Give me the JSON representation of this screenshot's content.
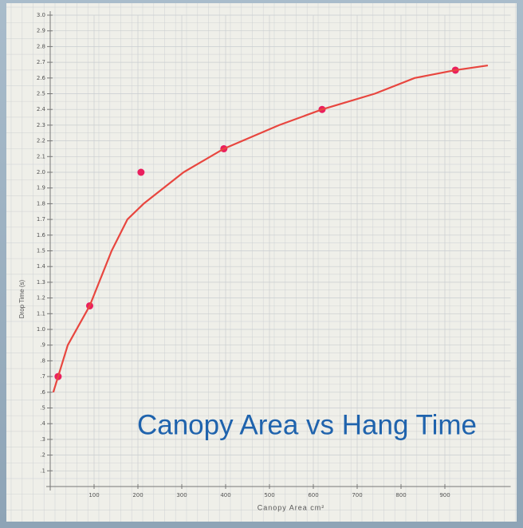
{
  "chart_data": {
    "type": "scatter",
    "title": "Canopy Area vs Hang Time",
    "x_label": "Canopy Area cm²",
    "y_label": "Drop Time (s)",
    "series": [
      {
        "type": "scatter",
        "color": "#ea1f5e",
        "x": [
          18,
          90,
          207,
          396,
          620,
          924
        ],
        "values": [
          0.7,
          1.15,
          2.0,
          2.15,
          2.4,
          2.65
        ]
      },
      {
        "type": "line",
        "color": "#e8463f",
        "x": [
          7,
          40,
          90,
          140,
          176,
          213,
          304,
          396,
          522,
          620,
          740,
          831,
          924,
          998
        ],
        "values": [
          0.6,
          0.9,
          1.15,
          1.5,
          1.7,
          1.8,
          2.0,
          2.15,
          2.3,
          2.4,
          2.5,
          2.6,
          2.65,
          2.68
        ]
      }
    ],
    "xlim": [
      0,
      1050
    ],
    "ylim": [
      0,
      3
    ],
    "xticks": [
      100,
      200,
      300,
      400,
      500,
      600,
      700,
      800,
      900
    ],
    "yticks": [
      {
        "value": 0.1,
        "label": ".1"
      },
      {
        "value": 0.2,
        "label": ".2"
      },
      {
        "value": 0.3,
        "label": ".3"
      },
      {
        "value": 0.4,
        "label": ".4"
      },
      {
        "value": 0.5,
        "label": ".5"
      },
      {
        "value": 0.6,
        "label": ".6"
      },
      {
        "value": 0.7,
        "label": ".7"
      },
      {
        "value": 0.8,
        "label": ".8"
      },
      {
        "value": 0.9,
        "label": ".9"
      },
      {
        "value": 1,
        "label": "1.0"
      },
      1.1,
      1.2,
      1.3,
      1.4,
      1.5,
      1.6,
      1.7,
      1.8,
      1.9,
      {
        "value": 2,
        "label": "2.0"
      },
      2.1,
      2.2,
      2.3,
      2.4,
      2.5,
      2.6,
      2.7,
      2.8,
      2.9,
      {
        "value": 3,
        "label": "3.0"
      }
    ],
    "grid": true
  }
}
